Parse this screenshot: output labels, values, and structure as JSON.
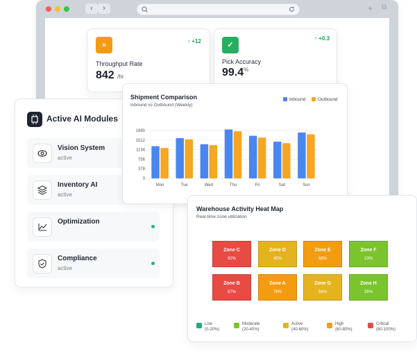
{
  "kpis": [
    {
      "label": "Throughput Rate",
      "value": "842",
      "unit": "/hr",
      "delta": "+12",
      "color": "#f39c12",
      "icon": "fast-forward-icon"
    },
    {
      "label": "Pick Accuracy",
      "value": "99.4",
      "unit": "%",
      "delta": "+0.3",
      "color": "#27ae60",
      "icon": "check-icon"
    }
  ],
  "modules": {
    "title": "Active AI Modules",
    "items": [
      {
        "name": "Vision System",
        "status": "active",
        "icon": "eye-icon",
        "dot": false
      },
      {
        "name": "Inventory AI",
        "status": "active",
        "icon": "layers-icon",
        "dot": false
      },
      {
        "name": "Optimization",
        "status": "",
        "icon": "trend-icon",
        "dot": true
      },
      {
        "name": "Compliance",
        "status": "active",
        "icon": "shield-icon",
        "dot": true
      }
    ]
  },
  "chart_data": {
    "type": "bar",
    "title": "Shipment Comparison",
    "subtitle": "Inbound vs Outbound (Weekly)",
    "categories": [
      "Mon",
      "Tue",
      "Wed",
      "Thu",
      "Fri",
      "Sat",
      "Sun"
    ],
    "series": [
      {
        "name": "Inbound",
        "color": "#4a86f0",
        "values": [
          1270,
          1590,
          1350,
          1930,
          1680,
          1450,
          1810
        ]
      },
      {
        "name": "Outbound",
        "color": "#f5a623",
        "values": [
          1200,
          1540,
          1310,
          1860,
          1610,
          1390,
          1740
        ]
      }
    ],
    "yticks": [
      "1890",
      "1512",
      "1134",
      "756",
      "378",
      "0"
    ],
    "ylim": [
      0,
      1890
    ],
    "legend": "top-right",
    "grid": true
  },
  "heatmap": {
    "title": "Warehouse Activity Heat Map",
    "subtitle": "Real-time zone utilization",
    "zones": [
      {
        "name": "Zone C",
        "value": "92%",
        "color": "#e84a44"
      },
      {
        "name": "Zone D",
        "value": "45%",
        "color": "#e4b31f"
      },
      {
        "name": "Zone E",
        "value": "68%",
        "color": "#f39c12"
      },
      {
        "name": "Zone F",
        "value": "23%",
        "color": "#7bc42e"
      },
      {
        "name": "Zone B",
        "value": "87%",
        "color": "#e84a44"
      },
      {
        "name": "Zone A",
        "value": "76%",
        "color": "#f39c12"
      },
      {
        "name": "Zone G",
        "value": "54%",
        "color": "#e4b31f"
      },
      {
        "name": "Zone H",
        "value": "39%",
        "color": "#7bc42e"
      }
    ],
    "legend": [
      {
        "label": "Low",
        "range": "(0-20%)",
        "color": "#1ab07a"
      },
      {
        "label": "Moderate",
        "range": "(20-40%)",
        "color": "#7bc42e"
      },
      {
        "label": "Active",
        "range": "(40-60%)",
        "color": "#e4b31f"
      },
      {
        "label": "High",
        "range": "(60-80%)",
        "color": "#f39c12"
      },
      {
        "label": "Critical",
        "range": "(80-100%)",
        "color": "#e84a44"
      }
    ]
  }
}
